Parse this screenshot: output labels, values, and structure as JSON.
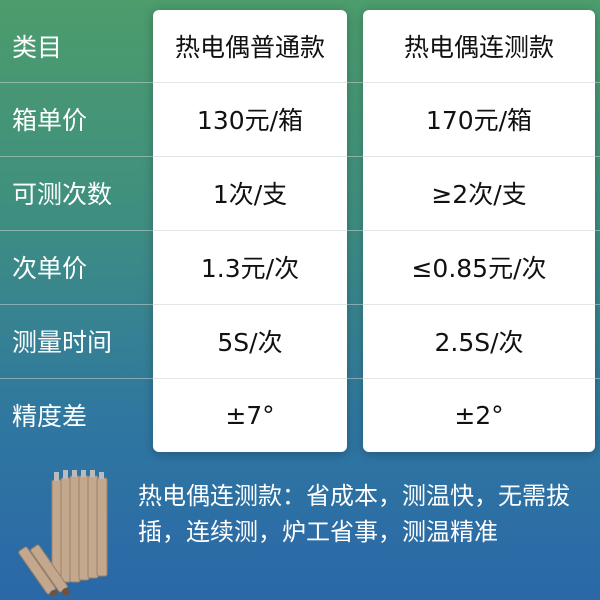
{
  "header": {
    "label": "类目",
    "col1": "热电偶普通款",
    "col2": "热电偶连测款"
  },
  "rows": [
    {
      "label": "箱单价",
      "col1": "130元/箱",
      "col2": "170元/箱"
    },
    {
      "label": "可测次数",
      "col1": "1次/支",
      "col2": "≥2次/支"
    },
    {
      "label": "次单价",
      "col1": "1.3元/次",
      "col2": "≤0.85元/次"
    },
    {
      "label": "测量时间",
      "col1": "5S/次",
      "col2": "2.5S/次"
    },
    {
      "label": "精度差",
      "col1": "±7°",
      "col2": "±2°"
    }
  ],
  "note": "热电偶连测款：省成本，测温快，无需拔插，连续测，炉工省事，测温精准",
  "colors": {
    "bg_top": "#4c9c6c",
    "bg_bottom": "#2a68a8",
    "tube": "#c4a88e"
  }
}
